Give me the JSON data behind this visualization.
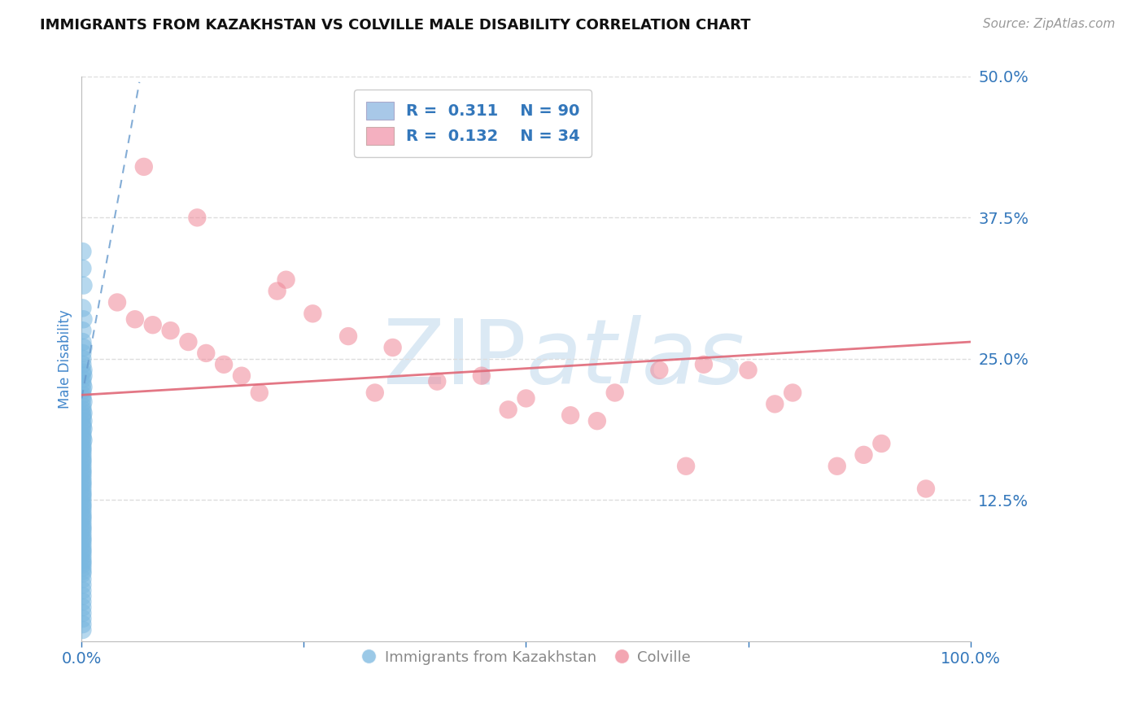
{
  "title": "IMMIGRANTS FROM KAZAKHSTAN VS COLVILLE MALE DISABILITY CORRELATION CHART",
  "source": "Source: ZipAtlas.com",
  "ylabel": "Male Disability",
  "xlim": [
    0.0,
    1.0
  ],
  "ylim": [
    0.0,
    0.5
  ],
  "xticks": [
    0.0,
    0.25,
    0.5,
    0.75,
    1.0
  ],
  "xtick_labels": [
    "0.0%",
    "",
    "",
    "",
    "100.0%"
  ],
  "ytick_labels": [
    "12.5%",
    "25.0%",
    "37.5%",
    "50.0%"
  ],
  "yticks": [
    0.125,
    0.25,
    0.375,
    0.5
  ],
  "blue_color": "#7ab8e0",
  "pink_color": "#f08898",
  "blue_legend_color": "#a8c8e8",
  "pink_legend_color": "#f4b0c0",
  "blue_line_color": "#6699cc",
  "pink_line_color": "#e06878",
  "watermark_color": "#cce0f0",
  "background_color": "#ffffff",
  "title_color": "#111111",
  "axis_label_color": "#4488cc",
  "tick_color": "#3377bb",
  "grid_color": "#dddddd",
  "blue_scatter_x": [
    0.001,
    0.001,
    0.002,
    0.001,
    0.002,
    0.001,
    0.001,
    0.002,
    0.001,
    0.001,
    0.001,
    0.002,
    0.001,
    0.002,
    0.001,
    0.001,
    0.002,
    0.001,
    0.001,
    0.001,
    0.002,
    0.001,
    0.001,
    0.002,
    0.001,
    0.001,
    0.002,
    0.001,
    0.001,
    0.002,
    0.001,
    0.001,
    0.001,
    0.002,
    0.001,
    0.001,
    0.001,
    0.001,
    0.001,
    0.001,
    0.001,
    0.001,
    0.001,
    0.001,
    0.001,
    0.001,
    0.001,
    0.001,
    0.001,
    0.001,
    0.001,
    0.001,
    0.001,
    0.001,
    0.001,
    0.001,
    0.001,
    0.001,
    0.001,
    0.001,
    0.001,
    0.001,
    0.001,
    0.001,
    0.001,
    0.001,
    0.001,
    0.001,
    0.001,
    0.001,
    0.001,
    0.001,
    0.001,
    0.001,
    0.001,
    0.001,
    0.001,
    0.001,
    0.001,
    0.001,
    0.001,
    0.001,
    0.001,
    0.001,
    0.001,
    0.001,
    0.001,
    0.001,
    0.001,
    0.001,
    0.001
  ],
  "blue_scatter_y": [
    0.345,
    0.33,
    0.315,
    0.295,
    0.285,
    0.275,
    0.265,
    0.26,
    0.255,
    0.25,
    0.245,
    0.24,
    0.238,
    0.235,
    0.232,
    0.228,
    0.225,
    0.222,
    0.218,
    0.215,
    0.212,
    0.208,
    0.205,
    0.202,
    0.2,
    0.198,
    0.195,
    0.192,
    0.19,
    0.188,
    0.185,
    0.182,
    0.18,
    0.178,
    0.175,
    0.172,
    0.17,
    0.168,
    0.165,
    0.162,
    0.16,
    0.158,
    0.155,
    0.152,
    0.15,
    0.148,
    0.145,
    0.142,
    0.14,
    0.138,
    0.135,
    0.132,
    0.13,
    0.128,
    0.125,
    0.122,
    0.12,
    0.118,
    0.115,
    0.112,
    0.11,
    0.108,
    0.105,
    0.102,
    0.1,
    0.098,
    0.095,
    0.092,
    0.09,
    0.088,
    0.085,
    0.082,
    0.08,
    0.078,
    0.075,
    0.072,
    0.07,
    0.068,
    0.065,
    0.062,
    0.06,
    0.055,
    0.05,
    0.045,
    0.04,
    0.035,
    0.03,
    0.025,
    0.02,
    0.015,
    0.01
  ],
  "pink_scatter_x": [
    0.04,
    0.06,
    0.08,
    0.1,
    0.12,
    0.14,
    0.16,
    0.18,
    0.2,
    0.23,
    0.26,
    0.3,
    0.35,
    0.4,
    0.45,
    0.5,
    0.55,
    0.6,
    0.65,
    0.7,
    0.75,
    0.8,
    0.85,
    0.9,
    0.95,
    0.07,
    0.13,
    0.22,
    0.33,
    0.48,
    0.58,
    0.68,
    0.78,
    0.88
  ],
  "pink_scatter_y": [
    0.3,
    0.285,
    0.28,
    0.275,
    0.265,
    0.255,
    0.245,
    0.235,
    0.22,
    0.32,
    0.29,
    0.27,
    0.26,
    0.23,
    0.235,
    0.215,
    0.2,
    0.22,
    0.24,
    0.245,
    0.24,
    0.22,
    0.155,
    0.175,
    0.135,
    0.42,
    0.375,
    0.31,
    0.22,
    0.205,
    0.195,
    0.155,
    0.21,
    0.165
  ],
  "blue_trend_x": [
    0.0,
    0.065
  ],
  "blue_trend_y": [
    0.215,
    0.495
  ],
  "pink_trend_x": [
    0.0,
    1.0
  ],
  "pink_trend_y": [
    0.218,
    0.265
  ]
}
